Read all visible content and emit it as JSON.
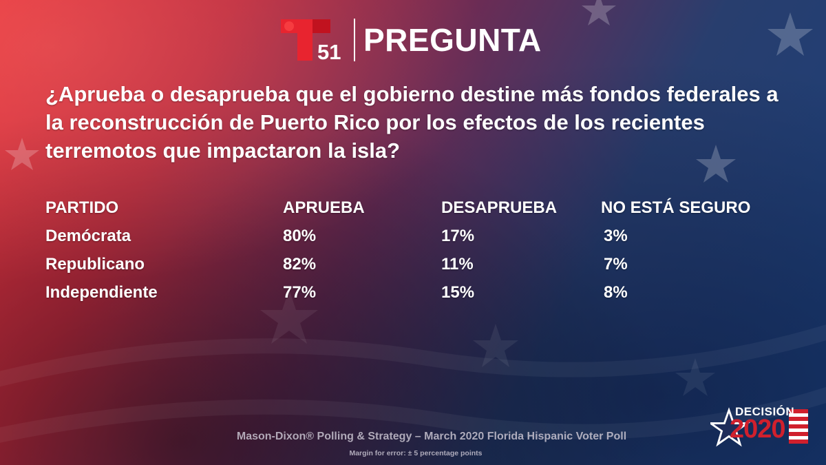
{
  "theme": {
    "brand_red": "#e8242f",
    "text_color": "#ffffff",
    "muted_text": "#cdc8d4",
    "decision_red": "#d0202d"
  },
  "header": {
    "logo_icon": "telemundo-logo-icon",
    "channel_number": "51",
    "title": "PREGUNTA"
  },
  "question": "¿Aprueba o desaprueba que el gobierno destine más fondos federales a la reconstrucción de Puerto Rico por los efectos de los recientes terremotos que impactaron la isla?",
  "table": {
    "headers": [
      "PARTIDO",
      "APRUEBA",
      "DESAPRUEBA",
      "NO ESTÁ SEGURO"
    ],
    "rows": [
      [
        "Demócrata",
        "80%",
        "17%",
        "3%"
      ],
      [
        "Republicano",
        "82%",
        "11%",
        "7%"
      ],
      [
        "Independiente",
        "77%",
        "15%",
        "8%"
      ]
    ]
  },
  "footer": {
    "source": "Mason-Dixon® Polling & Strategy – March 2020 Florida Hispanic Voter Poll",
    "margin_note": "Margin for error: ± 5 percentage points"
  },
  "decision_logo": {
    "icon": "decision-star-flag-icon",
    "word": "DECISIÓN",
    "year": "2020"
  }
}
